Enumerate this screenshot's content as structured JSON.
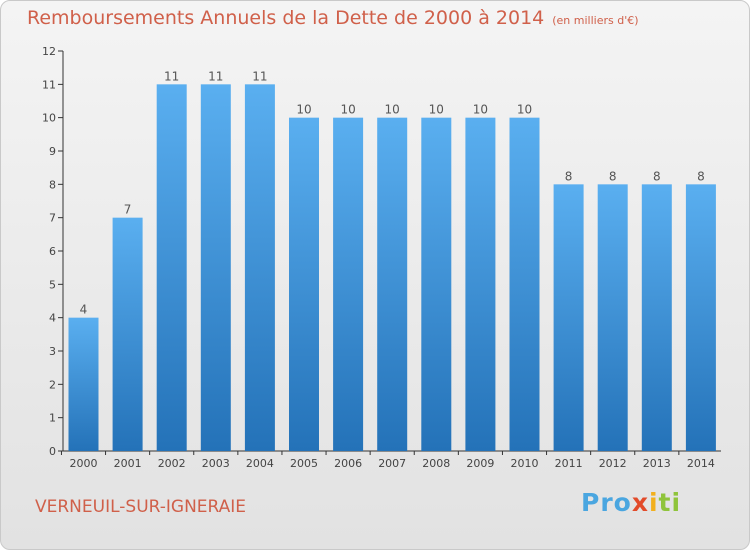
{
  "header": {
    "title": "Remboursements Annuels de la Dette de 2000 à 2014",
    "unit": "(en milliers d'€)"
  },
  "commune": "VERNEUIL-SUR-IGNERAIE",
  "logo": {
    "p1": "Pro",
    "p2": "x",
    "p3": "i",
    "p4": "ti"
  },
  "colors": {
    "title": "#d0604a",
    "bar_top": "#5aaff0",
    "bar_bottom": "#2472b8"
  },
  "chart_data": {
    "type": "bar",
    "title": "Remboursements Annuels de la Dette de 2000 à 2014",
    "xlabel": "",
    "ylabel": "",
    "categories": [
      "2000",
      "2001",
      "2002",
      "2003",
      "2004",
      "2005",
      "2006",
      "2007",
      "2008",
      "2009",
      "2010",
      "2011",
      "2012",
      "2013",
      "2014"
    ],
    "values": [
      4,
      7,
      11,
      11,
      11,
      10,
      10,
      10,
      10,
      10,
      10,
      8,
      8,
      8,
      8
    ],
    "ylim": [
      0,
      12
    ],
    "yticks": [
      "0",
      "1",
      "2",
      "3",
      "4",
      "5",
      "6",
      "7",
      "8",
      "9",
      "10",
      "11",
      "12"
    ],
    "grid": false,
    "data_labels": true
  }
}
